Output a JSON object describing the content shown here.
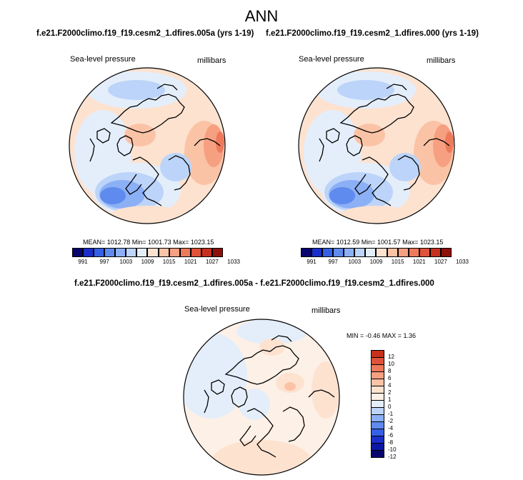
{
  "chart_data": {
    "type": "heatmap",
    "title": "ANN",
    "panels": [
      {
        "name": "f.e21.F2000climo.f19_f19.cesm2_1.dfires.005a (yrs 1-19)",
        "label": "Sea-level pressure",
        "units": "millibars",
        "mean": 1012.78,
        "min": 1001.73,
        "max": 1023.15,
        "stats_text": "MEAN= 1012.78  Min= 1001.73  Max= 1023.15",
        "colorbar_levels": [
          991,
          997,
          1003,
          1009,
          1015,
          1021,
          1027,
          1033
        ]
      },
      {
        "name": "f.e21.F2000climo.f19_f19.cesm2_1.dfires.000 (yrs 1-19)",
        "label": "Sea-level pressure",
        "units": "millibars",
        "mean": 1012.59,
        "min": 1001.57,
        "max": 1023.15,
        "stats_text": "MEAN= 1012.59  Min= 1001.57  Max= 1023.15",
        "colorbar_levels": [
          991,
          997,
          1003,
          1009,
          1015,
          1021,
          1027,
          1033
        ]
      },
      {
        "name": "f.e21.F2000climo.f19_f19.cesm2_1.dfires.005a - f.e21.F2000climo.f19_f19.cesm2_1.dfires.000",
        "label": "Sea-level pressure",
        "units": "millibars",
        "min": -0.46,
        "max": 1.36,
        "stats_text": "MIN =  -0.46 MAX =   1.36",
        "colorbar_levels": [
          12,
          10,
          8,
          6,
          4,
          2,
          1,
          0,
          -1,
          -2,
          -4,
          -6,
          -8,
          -10,
          -12
        ]
      }
    ],
    "abs_colors": [
      "#08066e",
      "#1a2fc9",
      "#3560e6",
      "#5f8aee",
      "#8cb0f5",
      "#bcd4f9",
      "#e4eefb",
      "#fde2d0",
      "#fbc3a6",
      "#f6a081",
      "#ee7a5c",
      "#e0523a",
      "#c8301e",
      "#8e100b"
    ],
    "diff_colors": [
      "#c8301e",
      "#e0523a",
      "#ee7a5c",
      "#f6a081",
      "#fbc3a6",
      "#fde2d0",
      "#fdf0e6",
      "#e4eefb",
      "#bcd4f9",
      "#8cb0f5",
      "#5f8aee",
      "#3560e6",
      "#1a2fc9",
      "#0c18a4",
      "#08066e"
    ]
  }
}
